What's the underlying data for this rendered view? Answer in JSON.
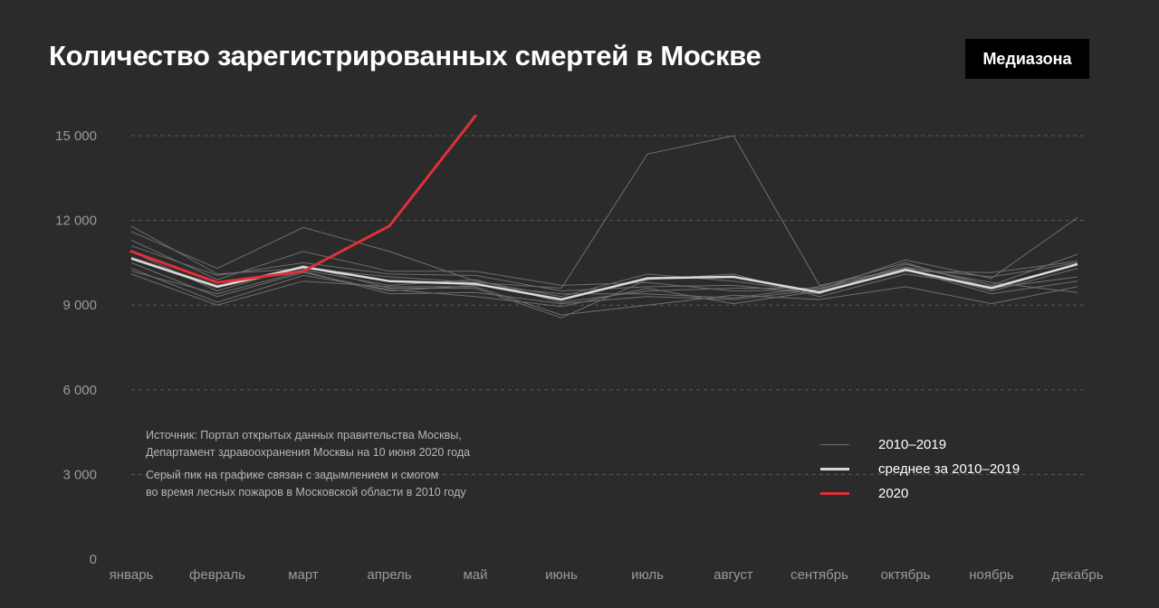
{
  "title": "Количество зарегистрированных смертей в Москве",
  "brand": "Медиазона",
  "notes": {
    "source": [
      "Источник: Портал открытых данных правительства Москвы,",
      "Департамент здравоохранения Москвы на 10 июня 2020 года"
    ],
    "smog": [
      "Серый пик на графике связан с задымлением и смогом",
      "во время лесных пожаров в Московской области в 2010 году"
    ]
  },
  "legend": [
    {
      "label": "2010–2019",
      "color": "#6e6e6e"
    },
    {
      "label": "среднее за 2010–2019",
      "color": "#d9d9d9"
    },
    {
      "label": "2020",
      "color": "#e0303a"
    }
  ],
  "chart_data": {
    "type": "line",
    "categories": [
      "январь",
      "февраль",
      "март",
      "апрель",
      "май",
      "июнь",
      "июль",
      "август",
      "сентябрь",
      "октябрь",
      "ноябрь",
      "декабрь"
    ],
    "ylim": [
      0,
      15000
    ],
    "yticks": [
      0,
      3000,
      6000,
      9000,
      12000,
      15000
    ],
    "ytick_labels": [
      "0",
      "3 000",
      "6 000",
      "9 000",
      "12 000",
      "15 000"
    ],
    "grid": true,
    "years_color": "#6e6e6e",
    "average_color": "#d9d9d9",
    "highlight_color": "#e0303a",
    "years": [
      {
        "values": [
          11800,
          10100,
          10300,
          10000,
          9800,
          9600,
          14350,
          15000,
          9700,
          10300,
          10000,
          10500
        ]
      },
      {
        "values": [
          11600,
          10300,
          11750,
          10900,
          9850,
          9300,
          10100,
          9850,
          9450,
          10200,
          10150,
          10550
        ]
      },
      {
        "values": [
          11300,
          9900,
          10900,
          10200,
          10200,
          9700,
          9800,
          9500,
          9550,
          10600,
          9950,
          12100
        ]
      },
      {
        "values": [
          11100,
          10050,
          10500,
          10100,
          10050,
          9500,
          9650,
          9700,
          9400,
          10450,
          9700,
          10800
        ]
      },
      {
        "values": [
          10900,
          9500,
          10400,
          9600,
          9600,
          8550,
          9900,
          10100,
          9300,
          10100,
          9650,
          10450
        ]
      },
      {
        "values": [
          10700,
          9700,
          10250,
          9700,
          9900,
          9100,
          9500,
          9600,
          9600,
          10300,
          9500,
          10300
        ]
      },
      {
        "values": [
          10500,
          9300,
          10150,
          9500,
          9700,
          9400,
          9400,
          9250,
          9650,
          10500,
          9600,
          10000
        ]
      },
      {
        "values": [
          10300,
          9100,
          10050,
          9550,
          9300,
          8950,
          9600,
          9050,
          9500,
          10250,
          9400,
          9850
        ]
      },
      {
        "values": [
          10100,
          9000,
          9850,
          9650,
          9650,
          8650,
          9000,
          9350,
          9200,
          9650,
          9050,
          9650
        ]
      },
      {
        "values": [
          10200,
          9400,
          10200,
          9400,
          9450,
          9050,
          9300,
          9200,
          9550,
          10350,
          9800,
          9450
        ]
      }
    ],
    "average": {
      "name": "среднее за 2010–2019",
      "values": [
        10650,
        9650,
        10350,
        9850,
        9750,
        9200,
        9950,
        10000,
        9450,
        10250,
        9600,
        10450
      ]
    },
    "highlight": {
      "name": "2020",
      "values": [
        10900,
        9800,
        10200,
        11800,
        15700
      ]
    }
  }
}
